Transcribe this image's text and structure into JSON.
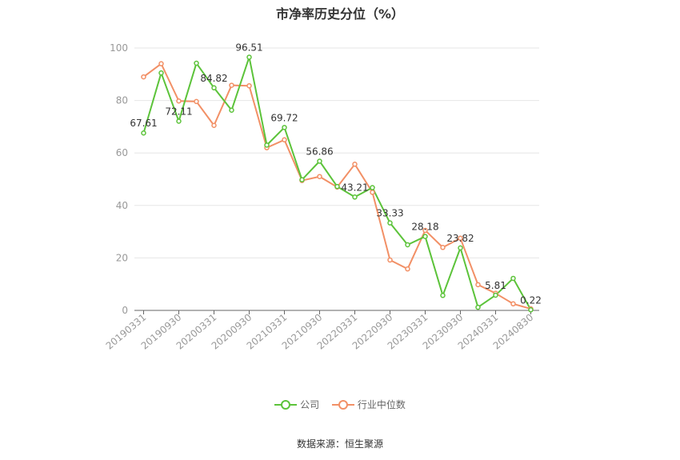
{
  "chart_data": {
    "type": "line",
    "title": "市净率历史分位（%）",
    "ylim": [
      0,
      100
    ],
    "yticks": [
      0,
      20,
      40,
      60,
      80,
      100
    ],
    "grid": true,
    "legend_position": "bottom",
    "x": [
      "20190331",
      "20190630",
      "20190930",
      "20191231",
      "20200331",
      "20200630",
      "20200930",
      "20201231",
      "20210331",
      "20210630",
      "20210930",
      "20211231",
      "20220331",
      "20220630",
      "20220930",
      "20221231",
      "20230331",
      "20230630",
      "20230930",
      "20231231",
      "20240331",
      "20240630",
      "20240830"
    ],
    "xtick_labels": [
      "20190331",
      "20190930",
      "20200331",
      "20200930",
      "20210331",
      "20210930",
      "20220331",
      "20220930",
      "20230331",
      "20230930",
      "20240331",
      "20240830"
    ],
    "series": [
      {
        "name": "公司",
        "color": "#5CC33A",
        "values": [
          67.61,
          90.5,
          72.11,
          94.2,
          84.82,
          76.3,
          96.51,
          63.0,
          69.72,
          49.8,
          56.86,
          47.2,
          43.21,
          46.8,
          33.33,
          25.0,
          28.18,
          5.7,
          23.82,
          1.2,
          5.81,
          12.2,
          0.22
        ],
        "point_labels": {
          "0": "67.61",
          "2": "72.11",
          "4": "84.82",
          "6": "96.51",
          "8": "69.72",
          "10": "56.86",
          "12": "43.21",
          "14": "33.33",
          "16": "28.18",
          "18": "23.82",
          "20": "5.81",
          "22": "0.22"
        }
      },
      {
        "name": "行业中位数",
        "color": "#F29066",
        "values": [
          89.0,
          94.0,
          79.8,
          79.6,
          70.5,
          85.8,
          85.6,
          62.0,
          65.0,
          49.5,
          51.0,
          47.0,
          55.7,
          45.0,
          19.2,
          15.8,
          30.5,
          24.0,
          27.5,
          9.8,
          6.5,
          2.5,
          0.6
        ]
      }
    ]
  },
  "source_text": "数据来源：恒生聚源"
}
